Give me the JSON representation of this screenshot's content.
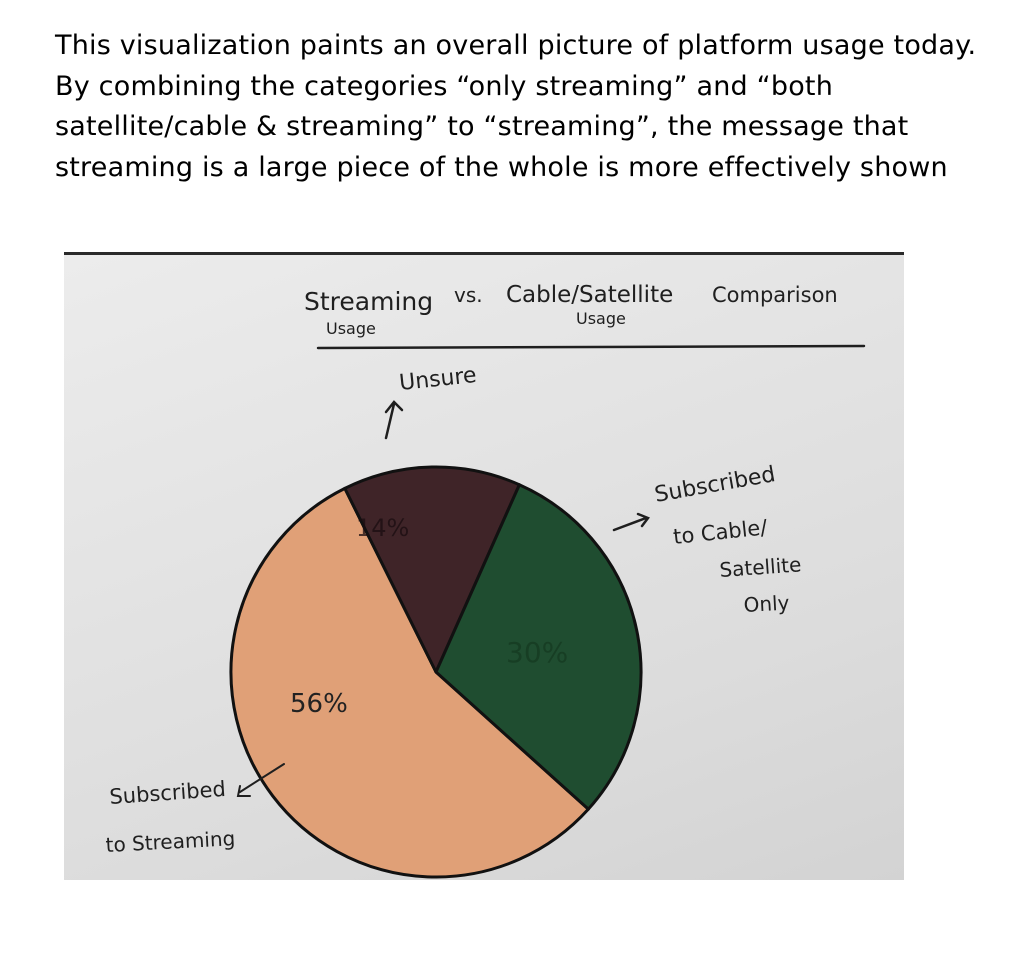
{
  "caption": "This visualization paints an overall picture of platform usage today. By combining the categories “only streaming” and “both satellite/cable & streaming” to “streaming”, the message that streaming is a large piece of the whole is more effectively shown",
  "chart_data": {
    "type": "pie",
    "title": "Streaming vs. Cable/Satellite Comparison",
    "title_words": {
      "streaming": "Streaming",
      "vs": "vs.",
      "cable_satellite": "Cable/Satellite",
      "comparison": "Comparison"
    },
    "subtitle_usage_1": "Usage",
    "subtitle_usage_2": "Usage",
    "slices": [
      {
        "label_line1": "Subscribed",
        "label_line2": "to Streaming",
        "value": 56,
        "value_label": "56%",
        "color": "#e0a077"
      },
      {
        "label_line1": "Unsure",
        "value": 14,
        "value_label": "14%",
        "color": "#3f2428"
      },
      {
        "label_line1": "Subscribed",
        "label_line2": "to Cable/",
        "label_line3": "Satellite",
        "label_line4": "Only",
        "value": 30,
        "value_label": "30%",
        "color": "#1f4d30"
      }
    ],
    "legend": "none",
    "grid": false
  }
}
